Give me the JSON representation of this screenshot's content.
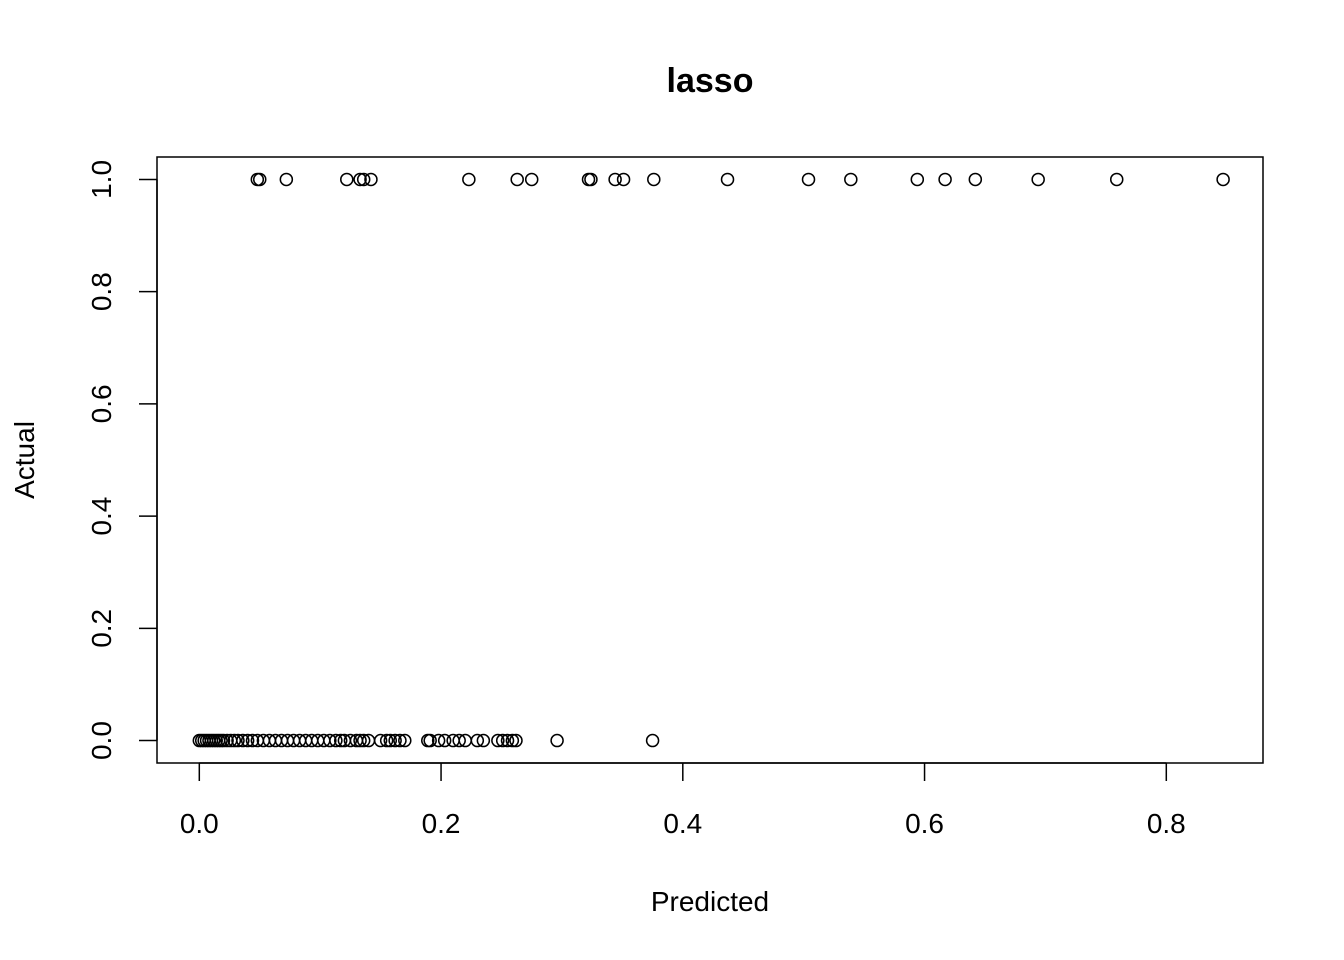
{
  "chart_data": {
    "type": "scatter",
    "title": "lasso",
    "xlabel": "Predicted",
    "ylabel": "Actual",
    "xlim": [
      -0.035,
      0.88
    ],
    "ylim": [
      -0.04,
      1.04
    ],
    "x_ticks": [
      0.0,
      0.2,
      0.4,
      0.6,
      0.8
    ],
    "x_tick_labels": [
      "0.0",
      "0.2",
      "0.4",
      "0.6",
      "0.8"
    ],
    "y_ticks": [
      0.0,
      0.2,
      0.4,
      0.6,
      0.8,
      1.0
    ],
    "y_tick_labels": [
      "0.0",
      "0.2",
      "0.4",
      "0.6",
      "0.8",
      "1.0"
    ],
    "grid": false,
    "legend": "none",
    "marker": "open-circle",
    "series": [
      {
        "points": [
          {
            "x": 0.048,
            "y": 1
          },
          {
            "x": 0.05,
            "y": 1
          },
          {
            "x": 0.072,
            "y": 1
          },
          {
            "x": 0.122,
            "y": 1
          },
          {
            "x": 0.133,
            "y": 1
          },
          {
            "x": 0.136,
            "y": 1
          },
          {
            "x": 0.142,
            "y": 1
          },
          {
            "x": 0.223,
            "y": 1
          },
          {
            "x": 0.263,
            "y": 1
          },
          {
            "x": 0.275,
            "y": 1
          },
          {
            "x": 0.322,
            "y": 1
          },
          {
            "x": 0.324,
            "y": 1
          },
          {
            "x": 0.344,
            "y": 1
          },
          {
            "x": 0.351,
            "y": 1
          },
          {
            "x": 0.376,
            "y": 1
          },
          {
            "x": 0.437,
            "y": 1
          },
          {
            "x": 0.504,
            "y": 1
          },
          {
            "x": 0.539,
            "y": 1
          },
          {
            "x": 0.594,
            "y": 1
          },
          {
            "x": 0.617,
            "y": 1
          },
          {
            "x": 0.642,
            "y": 1
          },
          {
            "x": 0.694,
            "y": 1
          },
          {
            "x": 0.759,
            "y": 1
          },
          {
            "x": 0.847,
            "y": 1
          },
          {
            "x": 0.0,
            "y": 0
          },
          {
            "x": 0.002,
            "y": 0
          },
          {
            "x": 0.004,
            "y": 0
          },
          {
            "x": 0.006,
            "y": 0
          },
          {
            "x": 0.008,
            "y": 0
          },
          {
            "x": 0.01,
            "y": 0
          },
          {
            "x": 0.012,
            "y": 0
          },
          {
            "x": 0.014,
            "y": 0
          },
          {
            "x": 0.016,
            "y": 0
          },
          {
            "x": 0.018,
            "y": 0
          },
          {
            "x": 0.02,
            "y": 0
          },
          {
            "x": 0.023,
            "y": 0
          },
          {
            "x": 0.026,
            "y": 0
          },
          {
            "x": 0.029,
            "y": 0
          },
          {
            "x": 0.032,
            "y": 0
          },
          {
            "x": 0.036,
            "y": 0
          },
          {
            "x": 0.04,
            "y": 0
          },
          {
            "x": 0.044,
            "y": 0
          },
          {
            "x": 0.048,
            "y": 0
          },
          {
            "x": 0.053,
            "y": 0
          },
          {
            "x": 0.058,
            "y": 0
          },
          {
            "x": 0.063,
            "y": 0
          },
          {
            "x": 0.068,
            "y": 0
          },
          {
            "x": 0.073,
            "y": 0
          },
          {
            "x": 0.078,
            "y": 0
          },
          {
            "x": 0.083,
            "y": 0
          },
          {
            "x": 0.088,
            "y": 0
          },
          {
            "x": 0.093,
            "y": 0
          },
          {
            "x": 0.098,
            "y": 0
          },
          {
            "x": 0.103,
            "y": 0
          },
          {
            "x": 0.108,
            "y": 0
          },
          {
            "x": 0.113,
            "y": 0
          },
          {
            "x": 0.117,
            "y": 0
          },
          {
            "x": 0.12,
            "y": 0
          },
          {
            "x": 0.125,
            "y": 0
          },
          {
            "x": 0.13,
            "y": 0
          },
          {
            "x": 0.133,
            "y": 0
          },
          {
            "x": 0.136,
            "y": 0
          },
          {
            "x": 0.14,
            "y": 0
          },
          {
            "x": 0.15,
            "y": 0
          },
          {
            "x": 0.155,
            "y": 0
          },
          {
            "x": 0.158,
            "y": 0
          },
          {
            "x": 0.162,
            "y": 0
          },
          {
            "x": 0.166,
            "y": 0
          },
          {
            "x": 0.17,
            "y": 0
          },
          {
            "x": 0.189,
            "y": 0
          },
          {
            "x": 0.191,
            "y": 0
          },
          {
            "x": 0.198,
            "y": 0
          },
          {
            "x": 0.203,
            "y": 0
          },
          {
            "x": 0.21,
            "y": 0
          },
          {
            "x": 0.215,
            "y": 0
          },
          {
            "x": 0.22,
            "y": 0
          },
          {
            "x": 0.23,
            "y": 0
          },
          {
            "x": 0.235,
            "y": 0
          },
          {
            "x": 0.247,
            "y": 0
          },
          {
            "x": 0.251,
            "y": 0
          },
          {
            "x": 0.255,
            "y": 0
          },
          {
            "x": 0.259,
            "y": 0
          },
          {
            "x": 0.262,
            "y": 0
          },
          {
            "x": 0.296,
            "y": 0
          },
          {
            "x": 0.375,
            "y": 0
          }
        ]
      }
    ]
  }
}
